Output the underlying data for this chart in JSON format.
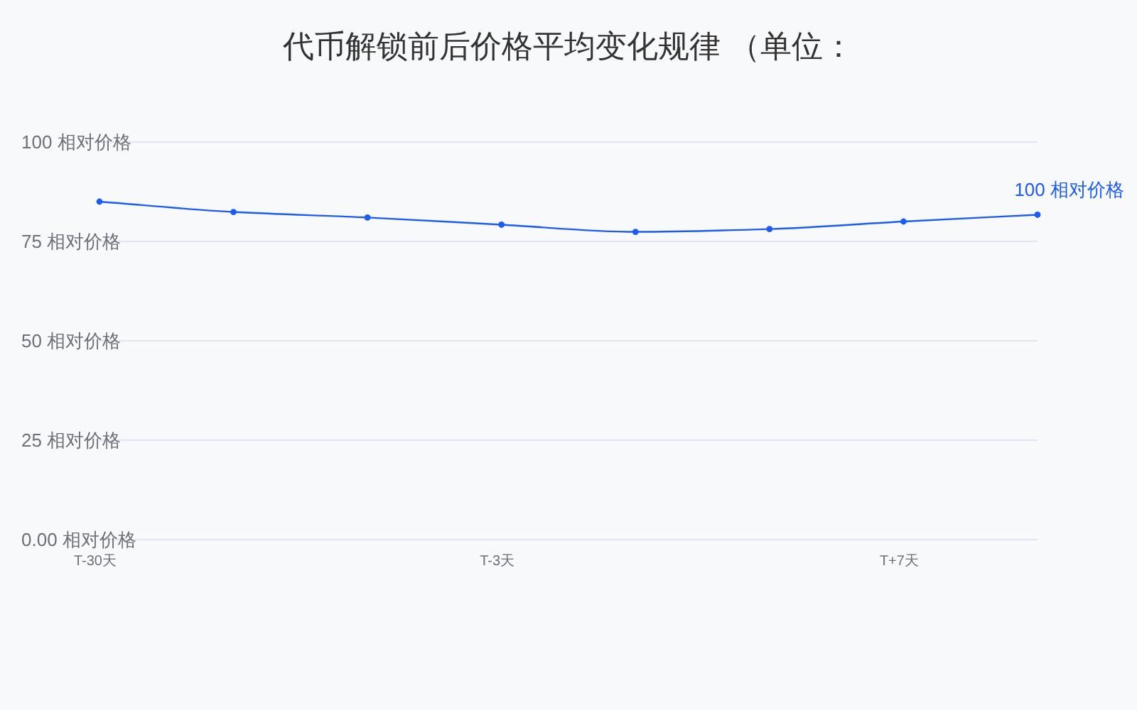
{
  "chart_data": {
    "type": "line",
    "title": "代币解锁前后价格平均变化规律 （单位：",
    "categories": [
      "T-30天",
      null,
      null,
      "T-3天",
      null,
      null,
      "T+7天",
      null
    ],
    "series": [
      {
        "color": "#1c5cf5",
        "values": [
          85.0,
          82.4,
          81.0,
          79.2,
          77.4,
          78.1,
          80.0,
          81.7
        ]
      }
    ],
    "ylim": [
      0,
      100
    ],
    "yticks": [
      {
        "value": 0,
        "label": "0.00 相对价格"
      },
      {
        "value": 25,
        "label": "25 相对价格"
      },
      {
        "value": 50,
        "label": "50 相对价格"
      },
      {
        "value": 75,
        "label": "75 相对价格"
      },
      {
        "value": 100,
        "label": "100 相对价格"
      }
    ],
    "grid": "y",
    "marker": "circle",
    "line_style": "solid",
    "annotations": [
      "100 相对价格"
    ]
  }
}
